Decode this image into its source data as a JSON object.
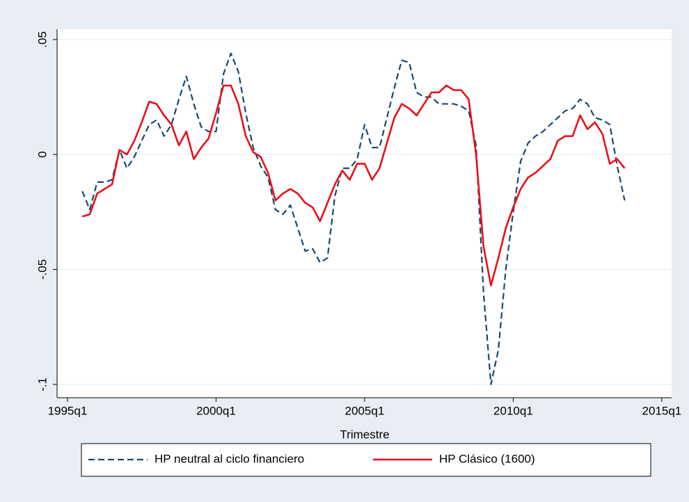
{
  "chart_data": {
    "type": "line",
    "x_label": "Trimestre",
    "x": [
      1995.5,
      1995.75,
      1996,
      1996.25,
      1996.5,
      1996.75,
      1997,
      1997.25,
      1997.5,
      1997.75,
      1998,
      1998.25,
      1998.5,
      1998.75,
      1999,
      1999.25,
      1999.5,
      1999.75,
      2000,
      2000.25,
      2000.5,
      2000.75,
      2001,
      2001.25,
      2001.5,
      2001.75,
      2002,
      2002.25,
      2002.5,
      2002.75,
      2003,
      2003.25,
      2003.5,
      2003.75,
      2004,
      2004.25,
      2004.5,
      2004.75,
      2005,
      2005.25,
      2005.5,
      2005.75,
      2006,
      2006.25,
      2006.5,
      2006.75,
      2007,
      2007.25,
      2007.5,
      2007.75,
      2008,
      2008.25,
      2008.5,
      2008.75,
      2009,
      2009.25,
      2009.5,
      2009.75,
      2010,
      2010.25,
      2010.5,
      2010.75,
      2011,
      2011.25,
      2011.5,
      2011.75,
      2012,
      2012.25,
      2012.5,
      2012.75,
      2013,
      2013.25,
      2013.5,
      2013.75
    ],
    "series": [
      {
        "name": "HP neutral al ciclo financiero",
        "color": "#1a476f",
        "dashed": true,
        "values": [
          -0.016,
          -0.024,
          -0.012,
          -0.012,
          -0.011,
          0.002,
          -0.006,
          -0.001,
          0.006,
          0.013,
          0.015,
          0.008,
          0.013,
          0.024,
          0.034,
          0.022,
          0.012,
          0.01,
          0.01,
          0.035,
          0.044,
          0.036,
          0.018,
          0.003,
          -0.005,
          -0.01,
          -0.024,
          -0.026,
          -0.022,
          -0.032,
          -0.042,
          -0.041,
          -0.047,
          -0.045,
          -0.018,
          -0.006,
          -0.006,
          -0.002,
          0.013,
          0.003,
          0.003,
          0.016,
          0.029,
          0.041,
          0.04,
          0.027,
          0.025,
          0.025,
          0.022,
          0.022,
          0.022,
          0.021,
          0.019,
          0.004,
          -0.06,
          -0.1,
          -0.085,
          -0.05,
          -0.025,
          -0.003,
          0.005,
          0.008,
          0.01,
          0.013,
          0.016,
          0.019,
          0.02,
          0.024,
          0.022,
          0.016,
          0.015,
          0.013,
          -0.005,
          -0.02
        ]
      },
      {
        "name": "HP Clásico (1600)",
        "color": "#e8101a",
        "dashed": false,
        "values": [
          -0.027,
          -0.026,
          -0.017,
          -0.015,
          -0.013,
          0.002,
          0.0,
          0.006,
          0.014,
          0.023,
          0.022,
          0.017,
          0.013,
          0.004,
          0.01,
          -0.002,
          0.003,
          0.007,
          0.018,
          0.03,
          0.03,
          0.022,
          0.008,
          0.001,
          -0.001,
          -0.008,
          -0.02,
          -0.017,
          -0.015,
          -0.017,
          -0.021,
          -0.023,
          -0.029,
          -0.021,
          -0.013,
          -0.007,
          -0.011,
          -0.004,
          -0.004,
          -0.011,
          -0.006,
          0.005,
          0.016,
          0.022,
          0.02,
          0.017,
          0.022,
          0.027,
          0.027,
          0.03,
          0.028,
          0.028,
          0.024,
          0.0,
          -0.04,
          -0.057,
          -0.045,
          -0.032,
          -0.023,
          -0.015,
          -0.01,
          -0.008,
          -0.005,
          -0.002,
          0.006,
          0.008,
          0.008,
          0.017,
          0.011,
          0.014,
          0.009,
          -0.004,
          -0.002,
          -0.006
        ]
      }
    ],
    "xlim": [
      1994.65,
      2015.33
    ],
    "xticks": [
      {
        "value": 1995,
        "label": "1995q1"
      },
      {
        "value": 2000,
        "label": "2000q1"
      },
      {
        "value": 2005,
        "label": "2005q1"
      },
      {
        "value": 2010,
        "label": "2010q1"
      },
      {
        "value": 2015,
        "label": "2015q1"
      }
    ],
    "ylim": [
      -0.1058,
      0.0545
    ],
    "yticks": [
      {
        "value": 0.05,
        "label": ".05"
      },
      0,
      {
        "value": -0.05,
        "label": "-.05"
      },
      {
        "value": -0.1,
        "label": "-.1"
      }
    ],
    "grid": true,
    "legend": "bottom"
  }
}
